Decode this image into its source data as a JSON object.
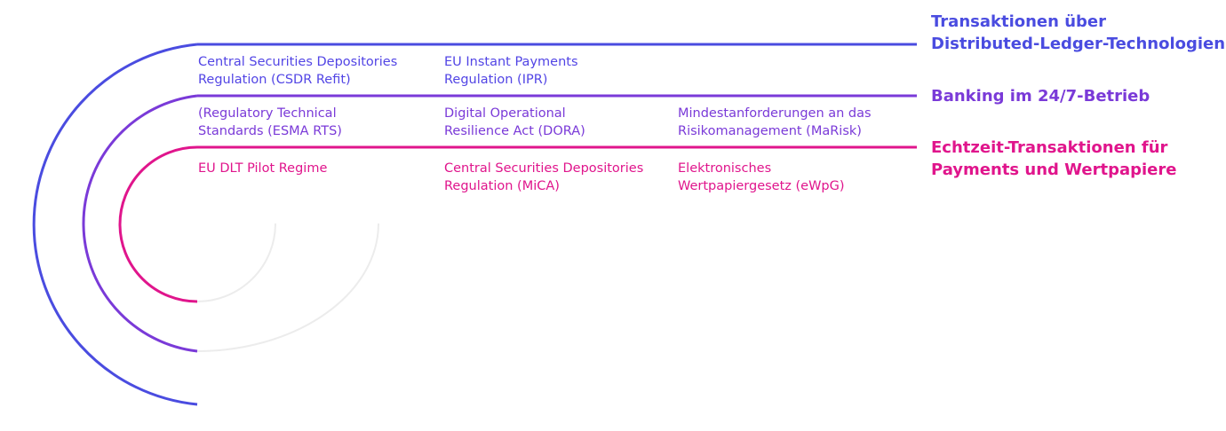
{
  "tiers": [
    {
      "title": "Transaktionen über\nDistributed-Ledger-Technologien",
      "color": "#4a4ce0",
      "items": [
        "Central Securities Depositories\nRegulation (CSDR Refit)",
        "EU Instant Payments\nRegulation (IPR)"
      ]
    },
    {
      "title": "Banking im 24/7-Betrieb",
      "color": "#7a3ad8",
      "items": [
        "(Regulatory Technical\nStandards (ESMA RTS)",
        "Digital Operational\nResilience Act (DORA)",
        "Mindestanforderungen an das\nRisikomanagement (MaRisk)"
      ]
    },
    {
      "title": "Echtzeit-Transaktionen für\nPayments und Wertpapiere",
      "color": "#e0158c",
      "items": [
        "EU DLT Pilot Regime",
        "Central Securities Depositories\nRegulation (MiCA)",
        "Elektronisches\nWertpapiergesetz (eWpG)"
      ]
    }
  ]
}
